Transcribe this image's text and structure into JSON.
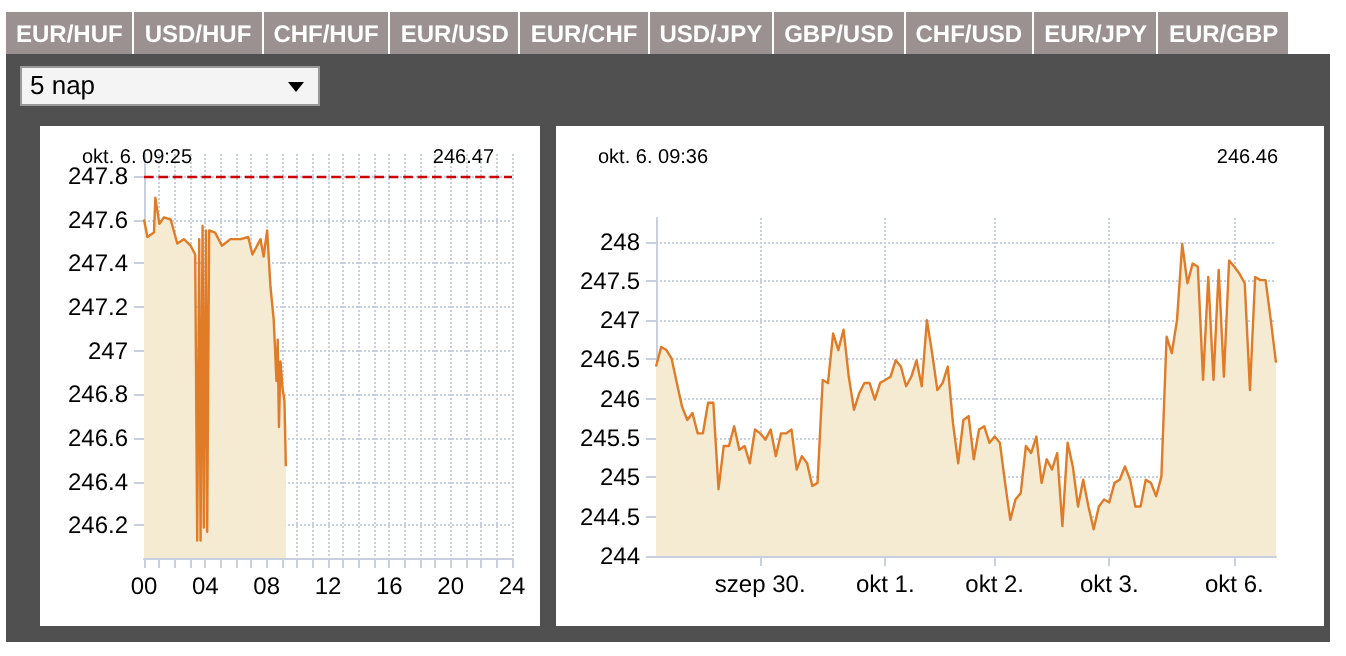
{
  "chart_data": [
    {
      "type": "other",
      "annotations": [
        "EUR/HUF",
        "USD/HUF",
        "CHF/HUF",
        "EUR/USD",
        "EUR/CHF",
        "USD/JPY",
        "GBP/USD",
        "CHF/USD",
        "EUR/JPY",
        "EUR/GBP",
        "5 nap"
      ]
    },
    {
      "type": "area",
      "annotations": [
        "okt. 6. 09:25",
        "246.47"
      ],
      "grid": true,
      "marker": "none",
      "xlim": [
        0,
        24
      ],
      "xticks": [
        {
          "value": 0,
          "label": "00"
        },
        {
          "value": 1,
          "label": null
        },
        {
          "value": 2,
          "label": null
        },
        {
          "value": 3,
          "label": null
        },
        {
          "value": 4,
          "label": "04"
        },
        {
          "value": 5,
          "label": null
        },
        {
          "value": 6,
          "label": null
        },
        {
          "value": 7,
          "label": null
        },
        {
          "value": 8,
          "label": "08"
        },
        {
          "value": 9,
          "label": null
        },
        {
          "value": 10,
          "label": null
        },
        {
          "value": 11,
          "label": null
        },
        {
          "value": 12,
          "label": "12"
        },
        {
          "value": 13,
          "label": null
        },
        {
          "value": 14,
          "label": null
        },
        {
          "value": 15,
          "label": null
        },
        {
          "value": 16,
          "label": "16"
        },
        {
          "value": 17,
          "label": null
        },
        {
          "value": 18,
          "label": null
        },
        {
          "value": 19,
          "label": null
        },
        {
          "value": 20,
          "label": "20"
        },
        {
          "value": 21,
          "label": null
        },
        {
          "value": 22,
          "label": null
        },
        {
          "value": 23,
          "label": null
        },
        {
          "value": 24,
          "label": "24"
        }
      ],
      "ylim": [
        246.05,
        247.9
      ],
      "yticks": [
        246.2,
        246.4,
        246.6,
        246.8,
        {
          "value": 247,
          "label": "247"
        },
        247.2,
        247.4,
        247.6,
        247.8
      ],
      "ref_lines": [
        {
          "axis": "y",
          "value": 247.8,
          "color": "#cc0000",
          "line_style": "dashed"
        }
      ],
      "series": [
        {
          "color": "#e07b28",
          "x": [
            0,
            0.22,
            0.65,
            0.74,
            1.0,
            1.3,
            1.74,
            2.17,
            2.6,
            3.04,
            3.34,
            3.47,
            3.6,
            3.69,
            3.82,
            3.9,
            4.04,
            4.12,
            4.25,
            4.64,
            5.08,
            5.64,
            6.3,
            6.8,
            7.07,
            7.6,
            7.8,
            8.03,
            8.25,
            8.46,
            8.64,
            8.72,
            8.8,
            8.9,
            9.03,
            9.16,
            9.25
          ],
          "values": [
            247.6,
            247.52,
            247.54,
            247.7,
            247.58,
            247.61,
            247.6,
            247.49,
            247.51,
            247.48,
            247.44,
            246.13,
            247.51,
            246.13,
            247.57,
            246.19,
            247.55,
            246.17,
            247.55,
            247.54,
            247.48,
            247.51,
            247.51,
            247.52,
            247.44,
            247.51,
            247.43,
            247.55,
            247.29,
            247.14,
            246.86,
            247.05,
            246.65,
            246.95,
            246.83,
            246.77,
            246.47
          ]
        }
      ]
    },
    {
      "type": "area",
      "annotations": [
        "okt. 6. 09:36",
        "246.46"
      ],
      "grid": true,
      "marker": "none",
      "categories": [
        null,
        null,
        null,
        null,
        null,
        null,
        null,
        null,
        null,
        null,
        null,
        null,
        null,
        null,
        null,
        null,
        null,
        null,
        null,
        null,
        "szep 30.",
        null,
        null,
        null,
        null,
        null,
        null,
        null,
        null,
        null,
        null,
        null,
        null,
        null,
        null,
        null,
        null,
        null,
        null,
        null,
        null,
        null,
        null,
        null,
        "okt 1.",
        null,
        null,
        null,
        null,
        null,
        null,
        null,
        null,
        null,
        null,
        null,
        null,
        null,
        null,
        null,
        null,
        null,
        null,
        null,
        null,
        "okt 2.",
        null,
        null,
        null,
        null,
        null,
        null,
        null,
        null,
        null,
        null,
        null,
        null,
        null,
        null,
        null,
        null,
        null,
        null,
        null,
        null,
        null,
        "okt 3.",
        null,
        null,
        null,
        null,
        null,
        null,
        null,
        null,
        null,
        null,
        null,
        null,
        null,
        null,
        null,
        null,
        null,
        null,
        null,
        null,
        null,
        null,
        null,
        "okt 6.",
        null,
        null,
        null,
        null,
        null,
        null,
        null,
        null
      ],
      "ylim": [
        244,
        248.3
      ],
      "yticks": [
        244,
        244.5,
        245,
        245.5,
        246,
        246.5,
        247,
        247.5,
        248
      ],
      "series": [
        {
          "color": "#e07b28",
          "values": [
            246.41,
            246.66,
            246.62,
            246.51,
            246.2,
            245.9,
            245.73,
            245.82,
            245.56,
            245.56,
            245.95,
            245.95,
            244.85,
            245.4,
            245.4,
            245.65,
            245.35,
            245.4,
            245.18,
            245.61,
            245.56,
            245.48,
            245.61,
            245.27,
            245.56,
            245.56,
            245.61,
            245.1,
            245.27,
            245.18,
            244.89,
            244.93,
            246.24,
            246.2,
            246.83,
            246.62,
            246.88,
            246.28,
            245.86,
            246.07,
            246.2,
            246.2,
            245.99,
            246.2,
            246.24,
            246.28,
            246.49,
            246.41,
            246.16,
            246.28,
            246.49,
            246.16,
            247,
            246.58,
            246.11,
            246.2,
            246.41,
            245.69,
            245.18,
            245.73,
            245.78,
            245.23,
            245.61,
            245.65,
            245.44,
            245.52,
            245.44,
            244.93,
            244.46,
            244.72,
            244.8,
            245.4,
            245.31,
            245.52,
            244.93,
            245.23,
            245.1,
            245.31,
            244.38,
            245.44,
            245.14,
            244.63,
            244.97,
            244.63,
            244.34,
            244.63,
            244.72,
            244.68,
            244.93,
            244.97,
            245.14,
            244.97,
            244.63,
            244.63,
            244.97,
            244.93,
            244.76,
            245.01,
            246.79,
            246.58,
            247,
            247.97,
            247.47,
            247.72,
            247.68,
            246.24,
            247.55,
            246.24,
            247.64,
            246.28,
            247.76,
            247.68,
            247.59,
            247.47,
            246.11,
            247.55,
            247.51,
            247.51,
            247,
            246.46
          ]
        }
      ]
    }
  ]
}
